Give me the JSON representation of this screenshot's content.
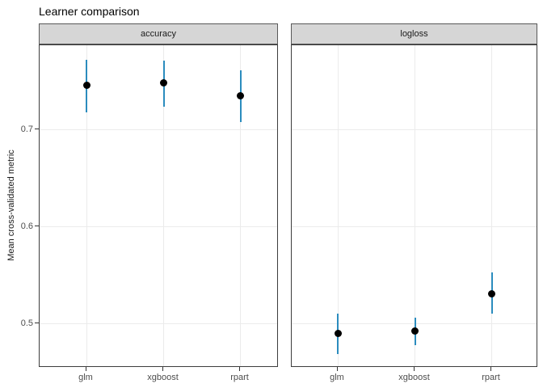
{
  "chart_data": {
    "type": "scatter",
    "title": "Learner comparison",
    "ylabel": "Mean cross-validated metric",
    "xlabel": "",
    "categories": [
      "glm",
      "xgboost",
      "rpart"
    ],
    "y_tick_labels": [
      "0.7",
      "0.6",
      "0.5"
    ],
    "y_ticks": [
      0.7,
      0.6,
      0.5
    ],
    "ylim": [
      0.455,
      0.787
    ],
    "grid": true,
    "legend": "none",
    "facets": [
      {
        "label": "accuracy",
        "points": [
          {
            "x": "glm",
            "mean": 0.746,
            "lower": 0.718,
            "upper": 0.772
          },
          {
            "x": "xgboost",
            "mean": 0.748,
            "lower": 0.724,
            "upper": 0.771
          },
          {
            "x": "rpart",
            "mean": 0.735,
            "lower": 0.708,
            "upper": 0.761
          }
        ]
      },
      {
        "label": "logloss",
        "points": [
          {
            "x": "glm",
            "mean": 0.49,
            "lower": 0.469,
            "upper": 0.511
          },
          {
            "x": "xgboost",
            "mean": 0.493,
            "lower": 0.478,
            "upper": 0.507
          },
          {
            "x": "rpart",
            "mean": 0.531,
            "lower": 0.511,
            "upper": 0.553
          }
        ]
      }
    ],
    "colors": {
      "point": "#000000",
      "errorbar": "#2b8cbe",
      "strip_bg": "#d6d6d6",
      "panel_border": "#3d3d3d",
      "gridline": "#ebebeb",
      "axis_text": "#4d4d4d",
      "title_text": "#000000"
    }
  }
}
